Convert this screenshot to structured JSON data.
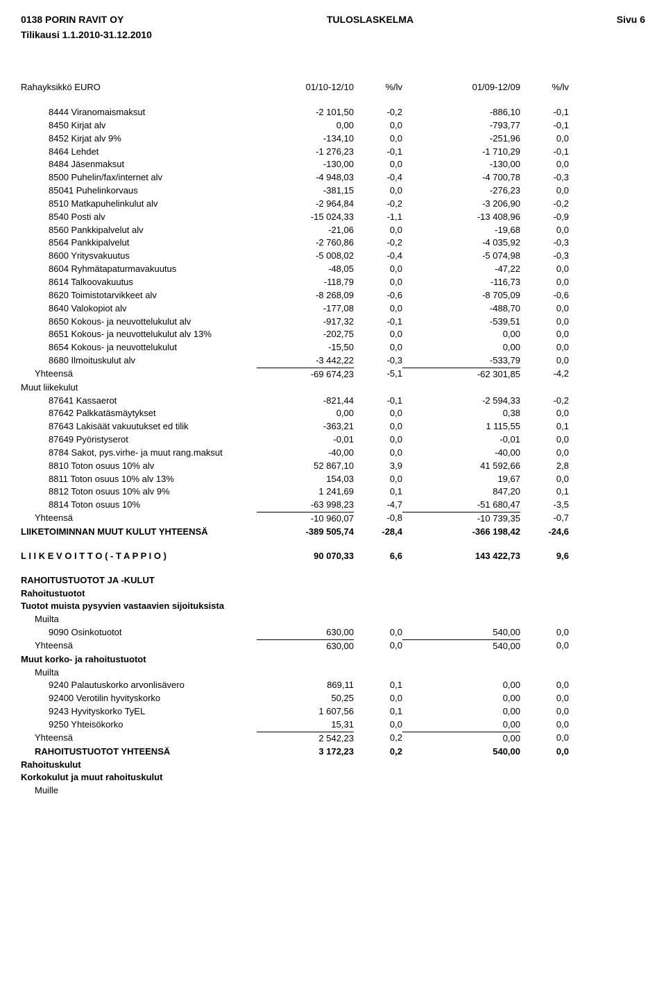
{
  "header": {
    "left": "0138 PORIN RAVIT OY",
    "center": "TULOSLASKELMA",
    "right": "Sivu 6",
    "sub": "Tilikausi 1.1.2010-31.12.2010"
  },
  "columns": {
    "label": "Rahayksikkö EURO",
    "v1": "01/10-12/10",
    "p1": "%/lv",
    "v2": "01/09-12/09",
    "p2": "%/lv"
  },
  "rows": [
    {
      "label": "8444 Viranomaismaksut",
      "v1": "-2 101,50",
      "p1": "-0,2",
      "v2": "-886,10",
      "p2": "-0,1",
      "indent": 2
    },
    {
      "label": "8450 Kirjat alv",
      "v1": "0,00",
      "p1": "0,0",
      "v2": "-793,77",
      "p2": "-0,1",
      "indent": 2
    },
    {
      "label": "8452 Kirjat alv 9%",
      "v1": "-134,10",
      "p1": "0,0",
      "v2": "-251,96",
      "p2": "0,0",
      "indent": 2
    },
    {
      "label": "8464 Lehdet",
      "v1": "-1 276,23",
      "p1": "-0,1",
      "v2": "-1 710,29",
      "p2": "-0,1",
      "indent": 2
    },
    {
      "label": "8484 Jäsenmaksut",
      "v1": "-130,00",
      "p1": "0,0",
      "v2": "-130,00",
      "p2": "0,0",
      "indent": 2
    },
    {
      "label": "8500 Puhelin/fax/internet alv",
      "v1": "-4 948,03",
      "p1": "-0,4",
      "v2": "-4 700,78",
      "p2": "-0,3",
      "indent": 2
    },
    {
      "label": "85041 Puhelinkorvaus",
      "v1": "-381,15",
      "p1": "0,0",
      "v2": "-276,23",
      "p2": "0,0",
      "indent": 2
    },
    {
      "label": "8510 Matkapuhelinkulut alv",
      "v1": "-2 964,84",
      "p1": "-0,2",
      "v2": "-3 206,90",
      "p2": "-0,2",
      "indent": 2
    },
    {
      "label": "8540 Posti alv",
      "v1": "-15 024,33",
      "p1": "-1,1",
      "v2": "-13 408,96",
      "p2": "-0,9",
      "indent": 2
    },
    {
      "label": "8560 Pankkipalvelut alv",
      "v1": "-21,06",
      "p1": "0,0",
      "v2": "-19,68",
      "p2": "0,0",
      "indent": 2
    },
    {
      "label": "8564 Pankkipalvelut",
      "v1": "-2 760,86",
      "p1": "-0,2",
      "v2": "-4 035,92",
      "p2": "-0,3",
      "indent": 2
    },
    {
      "label": "8600 Yritysvakuutus",
      "v1": "-5 008,02",
      "p1": "-0,4",
      "v2": "-5 074,98",
      "p2": "-0,3",
      "indent": 2
    },
    {
      "label": "8604 Ryhmätapaturmavakuutus",
      "v1": "-48,05",
      "p1": "0,0",
      "v2": "-47,22",
      "p2": "0,0",
      "indent": 2
    },
    {
      "label": "8614 Talkoovakuutus",
      "v1": "-118,79",
      "p1": "0,0",
      "v2": "-116,73",
      "p2": "0,0",
      "indent": 2
    },
    {
      "label": "8620 Toimistotarvikkeet alv",
      "v1": "-8 268,09",
      "p1": "-0,6",
      "v2": "-8 705,09",
      "p2": "-0,6",
      "indent": 2
    },
    {
      "label": "8640 Valokopiot alv",
      "v1": "-177,08",
      "p1": "0,0",
      "v2": "-488,70",
      "p2": "0,0",
      "indent": 2
    },
    {
      "label": "8650 Kokous- ja neuvottelukulut alv",
      "v1": "-917,32",
      "p1": "-0,1",
      "v2": "-539,51",
      "p2": "0,0",
      "indent": 2
    },
    {
      "label": "8651 Kokous- ja neuvottelukulut alv 13%",
      "v1": "-202,75",
      "p1": "0,0",
      "v2": "0,00",
      "p2": "0,0",
      "indent": 2
    },
    {
      "label": "8654 Kokous- ja neuvottelukulut",
      "v1": "-15,50",
      "p1": "0,0",
      "v2": "0,00",
      "p2": "0,0",
      "indent": 2
    },
    {
      "label": "8680 Ilmoituskulut alv",
      "v1": "-3 442,22",
      "p1": "-0,3",
      "v2": "-533,79",
      "p2": "0,0",
      "indent": 2
    },
    {
      "label": "Yhteensä",
      "v1": "-69 674,23",
      "p1": "-5,1",
      "v2": "-62 301,85",
      "p2": "-4,2",
      "indent": 1,
      "underline": true
    },
    {
      "label": "Muut liikekulut",
      "indent": 0
    },
    {
      "label": "87641 Kassaerot",
      "v1": "-821,44",
      "p1": "-0,1",
      "v2": "-2 594,33",
      "p2": "-0,2",
      "indent": 2
    },
    {
      "label": "87642 Palkkatäsmäytykset",
      "v1": "0,00",
      "p1": "0,0",
      "v2": "0,38",
      "p2": "0,0",
      "indent": 2
    },
    {
      "label": "87643 Lakisäät vakuutukset ed tilik",
      "v1": "-363,21",
      "p1": "0,0",
      "v2": "1 115,55",
      "p2": "0,1",
      "indent": 2
    },
    {
      "label": "87649 Pyöristyserot",
      "v1": "-0,01",
      "p1": "0,0",
      "v2": "-0,01",
      "p2": "0,0",
      "indent": 2
    },
    {
      "label": "8784 Sakot, pys.virhe- ja muut rang.maksut",
      "v1": "-40,00",
      "p1": "0,0",
      "v2": "-40,00",
      "p2": "0,0",
      "indent": 2
    },
    {
      "label": "8810 Toton osuus 10% alv",
      "v1": "52 867,10",
      "p1": "3,9",
      "v2": "41 592,66",
      "p2": "2,8",
      "indent": 2
    },
    {
      "label": "8811 Toton osuus 10% alv 13%",
      "v1": "154,03",
      "p1": "0,0",
      "v2": "19,67",
      "p2": "0,0",
      "indent": 2
    },
    {
      "label": "8812 Toton osuus 10% alv 9%",
      "v1": "1 241,69",
      "p1": "0,1",
      "v2": "847,20",
      "p2": "0,1",
      "indent": 2
    },
    {
      "label": "8814 Toton osuus 10%",
      "v1": "-63 998,23",
      "p1": "-4,7",
      "v2": "-51 680,47",
      "p2": "-3,5",
      "indent": 2
    },
    {
      "label": "Yhteensä",
      "v1": "-10 960,07",
      "p1": "-0,8",
      "v2": "-10 739,35",
      "p2": "-0,7",
      "indent": 1,
      "underline": true
    },
    {
      "label": "LIIKETOIMINNAN MUUT KULUT YHTEENSÄ",
      "v1": "-389 505,74",
      "p1": "-28,4",
      "v2": "-366 198,42",
      "p2": "-24,6",
      "indent": 0,
      "bold": true
    },
    {
      "gap": true
    },
    {
      "label": "L I I K E V O I T T O  ( - T A P P I O )",
      "v1": "90 070,33",
      "p1": "6,6",
      "v2": "143 422,73",
      "p2": "9,6",
      "indent": 0,
      "bold": true
    },
    {
      "gap": true
    },
    {
      "label": "RAHOITUSTUOTOT JA -KULUT",
      "indent": 0,
      "bold": true
    },
    {
      "label": "Rahoitustuotot",
      "indent": 0,
      "bold": true
    },
    {
      "label": "Tuotot muista pysyvien vastaavien sijoituksista",
      "indent": 0,
      "bold": true
    },
    {
      "label": "Muilta",
      "indent": 1
    },
    {
      "label": "9090 Osinkotuotot",
      "v1": "630,00",
      "p1": "0,0",
      "v2": "540,00",
      "p2": "0,0",
      "indent": 2
    },
    {
      "label": "Yhteensä",
      "v1": "630,00",
      "p1": "0,0",
      "v2": "540,00",
      "p2": "0,0",
      "indent": 1,
      "underline": true
    },
    {
      "label": "Muut korko- ja rahoitustuotot",
      "indent": 0,
      "bold": true
    },
    {
      "label": "Muilta",
      "indent": 1
    },
    {
      "label": "9240 Palautuskorko arvonlisävero",
      "v1": "869,11",
      "p1": "0,1",
      "v2": "0,00",
      "p2": "0,0",
      "indent": 2
    },
    {
      "label": "92400 Verotilin hyvityskorko",
      "v1": "50,25",
      "p1": "0,0",
      "v2": "0,00",
      "p2": "0,0",
      "indent": 2
    },
    {
      "label": "9243 Hyvityskorko TyEL",
      "v1": "1 607,56",
      "p1": "0,1",
      "v2": "0,00",
      "p2": "0,0",
      "indent": 2
    },
    {
      "label": "9250 Yhteisökorko",
      "v1": "15,31",
      "p1": "0,0",
      "v2": "0,00",
      "p2": "0,0",
      "indent": 2
    },
    {
      "label": "Yhteensä",
      "v1": "2 542,23",
      "p1": "0,2",
      "v2": "0,00",
      "p2": "0,0",
      "indent": 1,
      "underline": true
    },
    {
      "label": "RAHOITUSTUOTOT  YHTEENSÄ",
      "v1": "3 172,23",
      "p1": "0,2",
      "v2": "540,00",
      "p2": "0,0",
      "indent": 1,
      "bold": true
    },
    {
      "label": "Rahoituskulut",
      "indent": 0,
      "bold": true
    },
    {
      "label": "Korkokulut ja muut rahoituskulut",
      "indent": 0,
      "bold": true
    },
    {
      "label": "Muille",
      "indent": 1
    }
  ]
}
